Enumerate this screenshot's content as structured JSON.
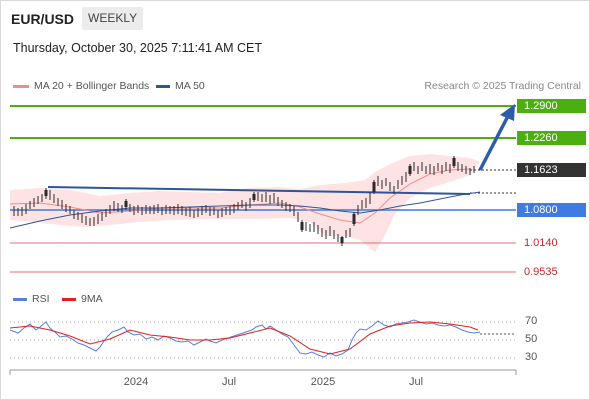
{
  "header": {
    "pair": "EUR/USD",
    "period": "WEEKLY",
    "datetime": "Thursday, October 30, 2025 7:11:41 AM CET"
  },
  "legend": {
    "main": [
      {
        "label": "MA 20 + Bollinger Bands",
        "color": "#f28b8b"
      },
      {
        "label": "MA 50",
        "color": "#2f5597"
      }
    ],
    "rsi": [
      {
        "label": "RSI",
        "color": "#5b7fd6"
      },
      {
        "label": "9MA",
        "color": "#e02020"
      }
    ],
    "copyright": "Research © 2025 Trading Central"
  },
  "levels": [
    {
      "label": "1.2900",
      "style": "box",
      "color": "#4caf10"
    },
    {
      "label": "1.2260",
      "style": "box",
      "color": "#4caf10"
    },
    {
      "label": "1.1623",
      "style": "box",
      "color": "#333333"
    },
    {
      "label": "1.0800",
      "style": "box",
      "color": "#3f7be0"
    },
    {
      "label": "1.0140",
      "style": "text",
      "color": "#c62828"
    },
    {
      "label": "0.9535",
      "style": "text",
      "color": "#c62828"
    }
  ],
  "rsi_axis": [
    "70",
    "50",
    "30"
  ],
  "x_axis": [
    "2024",
    "Jul",
    "2025",
    "Jul"
  ]
}
